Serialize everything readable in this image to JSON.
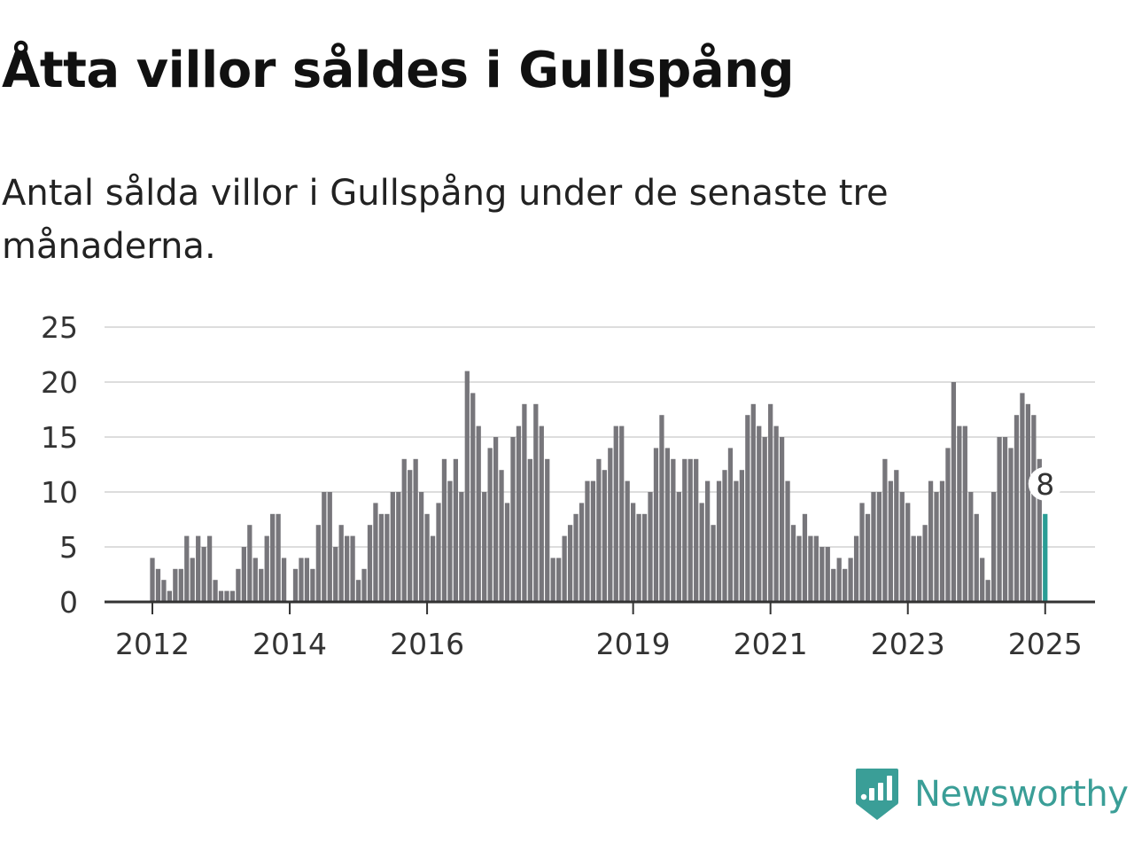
{
  "title": "Åtta villor såldes i Gullspång",
  "subtitle": "Antal sålda villor i Gullspång under de senaste tre månaderna.",
  "brand": {
    "name": "Newsworthy",
    "icon": "newsworthy-logo-icon",
    "color": "#3a9e97"
  },
  "colors": {
    "bar": "#77767b",
    "highlight": "#2a9d95",
    "grid": "#dddddd",
    "axis": "#333333"
  },
  "chart_data": {
    "type": "bar",
    "title": "Åtta villor såldes i Gullspång",
    "xlabel": "",
    "ylabel": "",
    "ylim": [
      0,
      25
    ],
    "y_ticks": [
      0,
      5,
      10,
      15,
      20,
      25
    ],
    "grid": true,
    "x_start_month": "2012-01",
    "x_tick_labels": [
      "2012",
      "2014",
      "2016",
      "2019",
      "2021",
      "2023",
      "2025"
    ],
    "annotation": {
      "label": "8",
      "value": 8
    },
    "values": [
      4,
      3,
      2,
      1,
      3,
      3,
      6,
      4,
      6,
      5,
      6,
      2,
      1,
      1,
      1,
      3,
      5,
      7,
      4,
      3,
      6,
      8,
      8,
      4,
      0,
      3,
      4,
      4,
      3,
      7,
      10,
      10,
      5,
      7,
      6,
      6,
      2,
      3,
      7,
      9,
      8,
      8,
      10,
      10,
      13,
      12,
      13,
      10,
      8,
      6,
      9,
      13,
      11,
      13,
      10,
      21,
      19,
      16,
      10,
      14,
      15,
      12,
      9,
      15,
      16,
      18,
      13,
      18,
      16,
      13,
      4,
      4,
      6,
      7,
      8,
      9,
      11,
      11,
      13,
      12,
      14,
      16,
      16,
      11,
      9,
      8,
      8,
      10,
      14,
      17,
      14,
      13,
      10,
      13,
      13,
      13,
      9,
      11,
      7,
      11,
      12,
      14,
      11,
      12,
      17,
      18,
      16,
      15,
      18,
      16,
      15,
      11,
      7,
      6,
      8,
      6,
      6,
      5,
      5,
      3,
      4,
      3,
      4,
      6,
      9,
      8,
      10,
      10,
      13,
      11,
      12,
      10,
      9,
      6,
      6,
      7,
      11,
      10,
      11,
      14,
      20,
      16,
      16,
      10,
      8,
      4,
      2,
      10,
      15,
      15,
      14,
      17,
      19,
      18,
      17,
      13,
      8
    ],
    "highlight_index": 156
  }
}
